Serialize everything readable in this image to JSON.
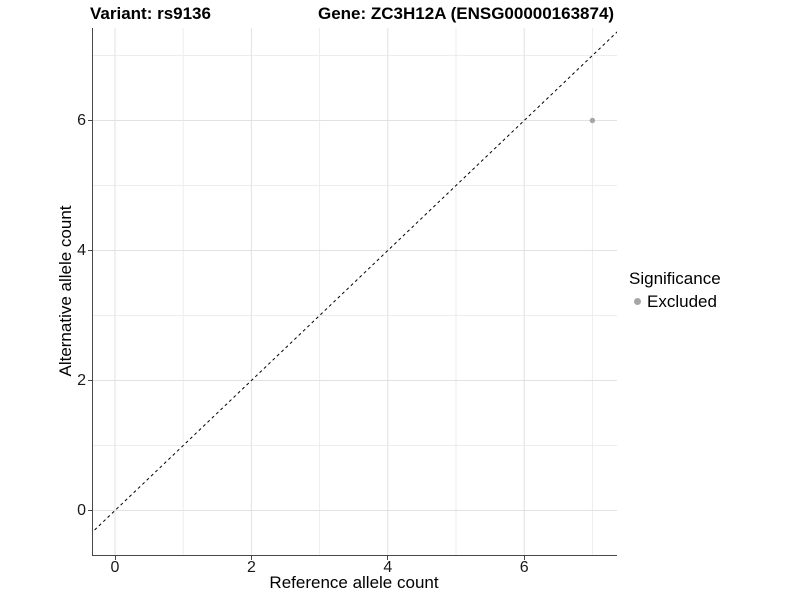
{
  "header": {
    "variant_title": "Variant: rs9136",
    "gene_title": "Gene: ZC3H12A (ENSG00000163874)"
  },
  "axes": {
    "x_label": "Reference allele count",
    "y_label": "Alternative allele count"
  },
  "legend": {
    "title": "Significance",
    "items": [
      {
        "label": "Excluded",
        "color": "#A6A6A6"
      }
    ]
  },
  "chart_data": {
    "type": "scatter",
    "title": "Variant: rs9136 | Gene: ZC3H12A (ENSG00000163874)",
    "xlabel": "Reference allele count",
    "ylabel": "Alternative allele count",
    "xlim": [
      -0.33,
      7.43
    ],
    "ylim": [
      -0.69,
      7.42
    ],
    "x_ticks": [
      0,
      2,
      4,
      6
    ],
    "y_ticks": [
      0,
      2,
      4,
      6
    ],
    "grid_x": [
      0,
      1,
      2,
      3,
      4,
      5,
      6,
      7
    ],
    "grid_y": [
      0,
      1,
      2,
      3,
      4,
      5,
      6,
      7
    ],
    "grid": "major at even integers, minor at odd integers",
    "legend_position": "right",
    "series": [
      {
        "name": "Excluded",
        "color": "#A6A6A6",
        "point_radius": 2.7,
        "points": [
          {
            "x": 7,
            "y": 6
          }
        ]
      }
    ],
    "reference_line": {
      "type": "identity y=x",
      "style": "dashed",
      "color": "#000000"
    }
  },
  "colors": {
    "background": "#FFFFFF",
    "grid_major": "#E2E2E2",
    "grid_minor": "#EDEDED",
    "axis_line": "#474747",
    "point": "#A6A6A6",
    "text": "#000000"
  }
}
